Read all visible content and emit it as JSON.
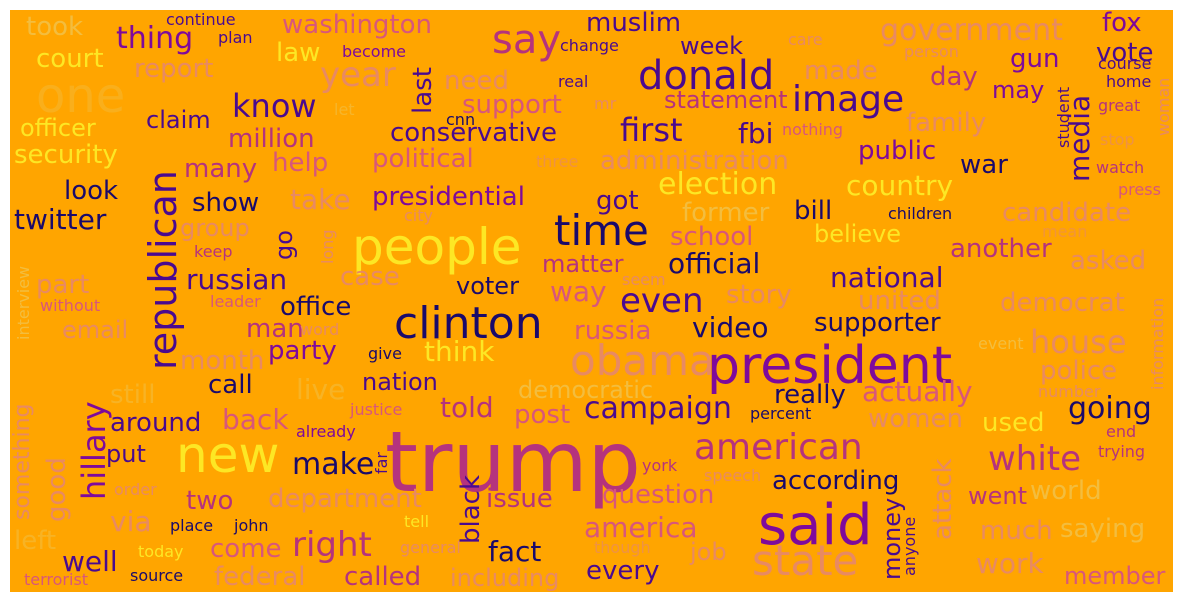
{
  "background_color": "#ffa500",
  "palette": [
    "#1a0a6b",
    "#4a0a8f",
    "#7e0a9c",
    "#b5337d",
    "#d8577a",
    "#e88a62",
    "#f3bd3e",
    "#fde724"
  ],
  "words": [
    "trump",
    "said",
    "president",
    "people",
    "clinton",
    "time",
    "new",
    "state",
    "obama",
    "donald",
    "republican",
    "hillary",
    "american",
    "image",
    "say",
    "white",
    "one",
    "first",
    "fbi",
    "make",
    "campaign",
    "right",
    "year",
    "even",
    "going",
    "media",
    "know",
    "house",
    "government",
    "election",
    "security",
    "video",
    "official",
    "russian",
    "twitter",
    "supporter",
    "country",
    "think",
    "former",
    "fact",
    "well",
    "told",
    "conservative",
    "presidential",
    "national",
    "muslim",
    "washington",
    "thing",
    "court",
    "law",
    "week",
    "vote",
    "fox",
    "gun",
    "may",
    "day",
    "made",
    "report",
    "need",
    "support",
    "statement",
    "officer",
    "claim",
    "million",
    "family",
    "many",
    "help",
    "political",
    "administration",
    "public",
    "war",
    "look",
    "show",
    "take",
    "got",
    "bill",
    "children",
    "candidate",
    "school",
    "believe",
    "group",
    "go",
    "another",
    "asked",
    "part",
    "case",
    "matter",
    "way",
    "story",
    "united",
    "democrat",
    "office",
    "voter",
    "russia",
    "email",
    "man",
    "party",
    "month",
    "call",
    "nation",
    "democratic",
    "really",
    "actually",
    "police",
    "still",
    "live",
    "back",
    "post",
    "women",
    "used",
    "around",
    "put",
    "two",
    "department",
    "issue",
    "question",
    "according",
    "world",
    "via",
    "come",
    "america",
    "black",
    "money",
    "anyone",
    "attack",
    "went",
    "much",
    "saying",
    "left",
    "good",
    "something",
    "federal",
    "called",
    "including",
    "every",
    "job",
    "work",
    "member",
    "source",
    "terrorist",
    "today",
    "tell",
    "general",
    "though",
    "place",
    "john",
    "york",
    "speech",
    "order",
    "far",
    "already",
    "justice",
    "percent",
    "give",
    "word",
    "event",
    "number",
    "end",
    "trying",
    "without",
    "leader",
    "keep",
    "long",
    "city",
    "seem",
    "mean",
    "interview",
    "information",
    "three",
    "nothing",
    "care",
    "person",
    "plan",
    "continue",
    "took",
    "become",
    "change",
    "real",
    "mr",
    "cnn",
    "let",
    "last",
    "student",
    "course",
    "home",
    "great",
    "stop",
    "watch",
    "press",
    "woman"
  ]
}
